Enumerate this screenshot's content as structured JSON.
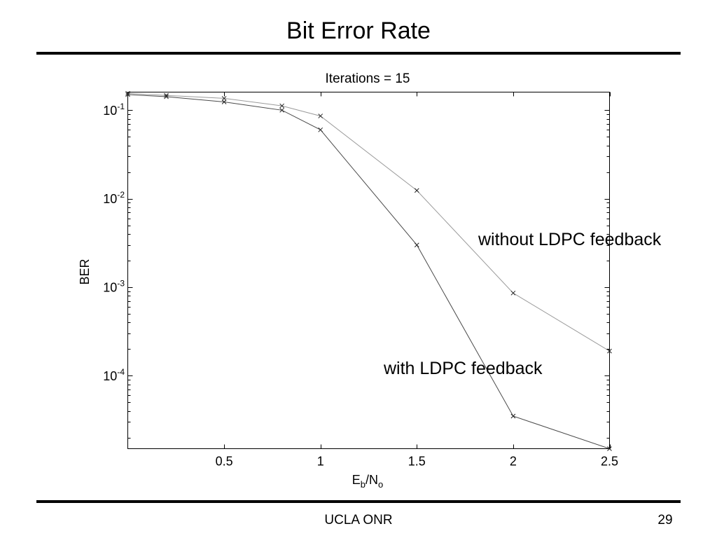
{
  "slide": {
    "title": "Bit Error Rate",
    "footer": "UCLA ONR",
    "page_number": "29"
  },
  "chart_data": {
    "type": "line",
    "title": "Iterations = 15",
    "xlabel": {
      "text1": "E",
      "sub1": "b",
      "text2": "/N",
      "sub2": "o"
    },
    "ylabel": "BER",
    "yscale": "log",
    "xlim": [
      0,
      2.5
    ],
    "ylim": [
      1.5e-05,
      0.16
    ],
    "xticks": [
      0.5,
      1,
      1.5,
      2,
      2.5
    ],
    "xtick_labels": [
      "0.5",
      "1",
      "1.5",
      "2",
      "2.5"
    ],
    "yticks": [
      0.1,
      0.01,
      0.001,
      0.0001
    ],
    "ytick_labels": [
      {
        "base": "10",
        "exp": "-1"
      },
      {
        "base": "10",
        "exp": "-2"
      },
      {
        "base": "10",
        "exp": "-3"
      },
      {
        "base": "10",
        "exp": "-4"
      }
    ],
    "grid": false,
    "legend": "none",
    "marker": "x",
    "marker_color": "#222222",
    "x": [
      0,
      0.2,
      0.5,
      0.8,
      1,
      1.5,
      2,
      2.5
    ],
    "series": [
      {
        "name": "without LDPC feedback",
        "color": "#9a9a9a",
        "values": [
          0.155,
          0.147,
          0.136,
          0.112,
          0.086,
          0.0124,
          0.00086,
          0.00019
        ]
      },
      {
        "name": "with LDPC feedback",
        "color": "#4a4a4a",
        "values": [
          0.15,
          0.142,
          0.124,
          0.1,
          0.06,
          0.003,
          3.5e-05,
          1.5e-05
        ]
      }
    ]
  }
}
